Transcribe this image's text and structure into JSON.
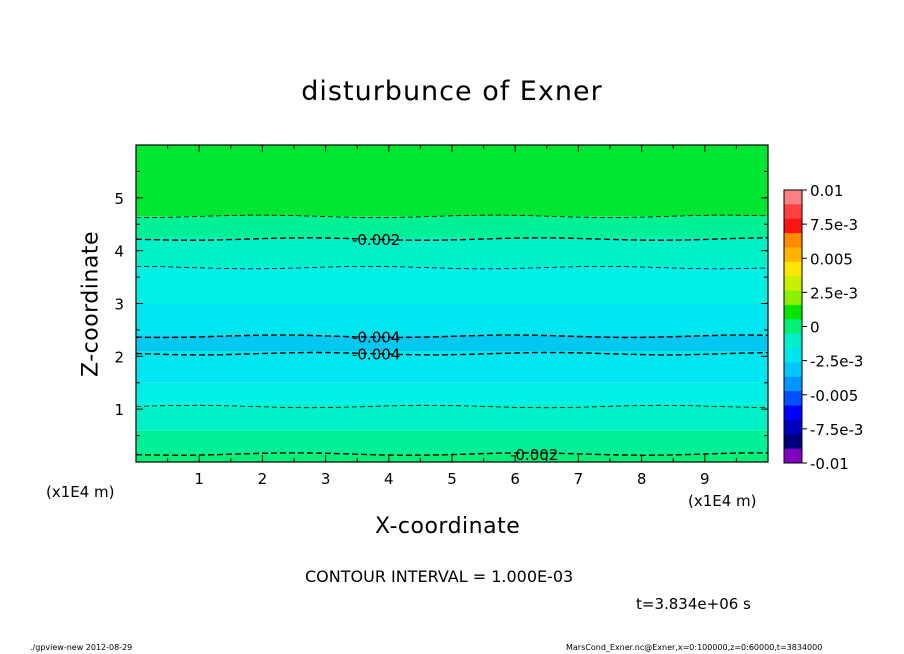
{
  "chart_data": {
    "type": "heatmap",
    "title": "disturbunce of Exner",
    "xlabel": "X-coordinate",
    "ylabel": "Z-coordinate",
    "x_unit": "(x1E4 m)",
    "xlim": [
      0,
      10
    ],
    "ylim": [
      0,
      6
    ],
    "x_ticks": [
      "1",
      "2",
      "3",
      "4",
      "5",
      "6",
      "7",
      "8",
      "9"
    ],
    "y_ticks": [
      "1",
      "2",
      "3",
      "4",
      "5"
    ],
    "colorbar": {
      "tick_labels": [
        "0.01",
        "7.5e-3",
        "0.005",
        "2.5e-3",
        "0",
        "-2.5e-3",
        "-0.005",
        "-7.5e-3",
        "-0.01"
      ],
      "colors": [
        "#ff8080",
        "#ff4040",
        "#ff1414",
        "#ff8c00",
        "#ffb400",
        "#ffe600",
        "#c8f000",
        "#8cf000",
        "#00e600",
        "#00f078",
        "#00f0c8",
        "#00e6f0",
        "#00c8ff",
        "#0096ff",
        "#0050ff",
        "#0000ff",
        "#0000c0",
        "#00007f",
        "#7f00c0"
      ]
    },
    "bands": [
      {
        "z_from": 0.0,
        "z_to": 0.15,
        "value": -0.0015,
        "color": "#00f078"
      },
      {
        "z_from": 0.15,
        "z_to": 0.6,
        "value": -0.0025,
        "color": "#00f096"
      },
      {
        "z_from": 0.6,
        "z_to": 1.1,
        "value": -0.003,
        "color": "#00f0c8"
      },
      {
        "z_from": 1.1,
        "z_to": 1.5,
        "value": -0.0035,
        "color": "#00f0e6"
      },
      {
        "z_from": 1.5,
        "z_to": 2.1,
        "value": -0.004,
        "color": "#00e6f0"
      },
      {
        "z_from": 2.1,
        "z_to": 2.4,
        "value": -0.0045,
        "color": "#00c8f0"
      },
      {
        "z_from": 2.4,
        "z_to": 3.0,
        "value": -0.004,
        "color": "#00e6f0"
      },
      {
        "z_from": 3.0,
        "z_to": 3.7,
        "value": -0.0035,
        "color": "#00f0e6"
      },
      {
        "z_from": 3.7,
        "z_to": 4.25,
        "value": -0.003,
        "color": "#00f0c8"
      },
      {
        "z_from": 4.25,
        "z_to": 4.65,
        "value": -0.002,
        "color": "#00f096"
      },
      {
        "z_from": 4.65,
        "z_to": 6.0,
        "value": -0.001,
        "color": "#00e632"
      }
    ],
    "contours": [
      {
        "z": 0.15,
        "value": -0.002,
        "style": "dashed",
        "label": "-0.002",
        "label_x": 6.3
      },
      {
        "z": 1.05,
        "value": -0.003,
        "style": "dashed-thin",
        "label": ""
      },
      {
        "z": 2.05,
        "value": -0.004,
        "style": "dashed",
        "label": "-0.004",
        "label_x": 3.8
      },
      {
        "z": 2.38,
        "value": -0.004,
        "style": "dashed",
        "label": "-0.004",
        "label_x": 3.8
      },
      {
        "z": 3.68,
        "value": -0.003,
        "style": "dashed-thin",
        "label": ""
      },
      {
        "z": 4.22,
        "value": -0.002,
        "style": "dashed",
        "label": "-0.002",
        "label_x": 3.8
      },
      {
        "z": 4.65,
        "value": -0.001,
        "style": "dashed-thin",
        "label": ""
      }
    ]
  },
  "labels": {
    "title": "disturbunce of Exner",
    "xlabel": "X-coordinate",
    "ylabel": "Z-coordinate",
    "xunit_left": "(x1E4 m)",
    "xunit_right": "(x1E4 m)",
    "contour_interval": "CONTOUR INTERVAL = 1.000E-03",
    "time": "t=3.834e+06 s",
    "footer_left": "./gpview-new   2012-08-29",
    "footer_right": "MarsCond_Exner.nc@Exner,x=0:100000,z=0:60000,t=3834000"
  }
}
